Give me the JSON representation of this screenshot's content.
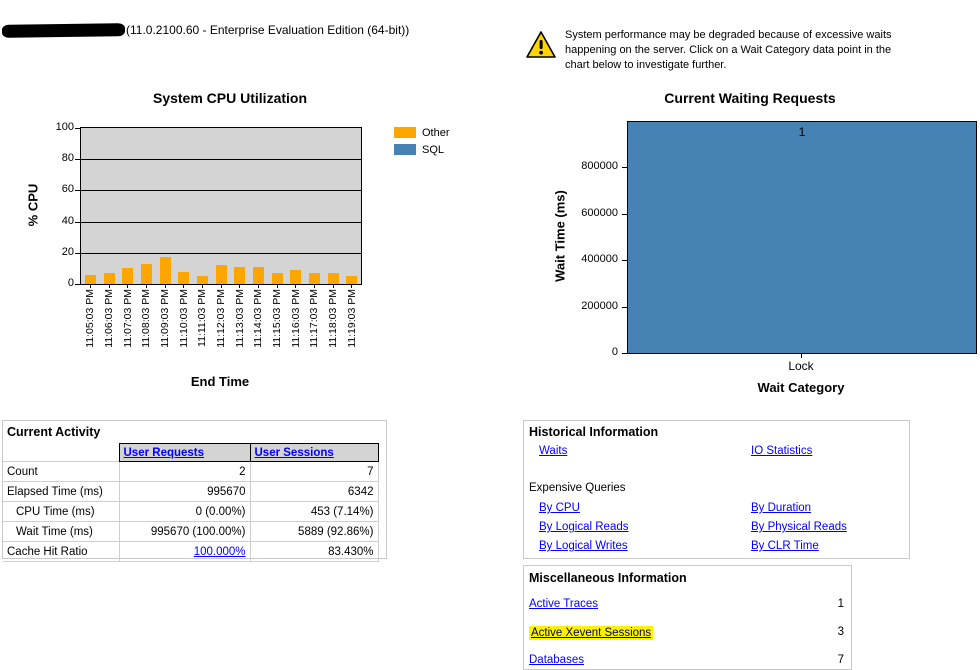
{
  "header": {
    "server_title": "(11.0.2100.60 - Enterprise Evaluation Edition (64-bit))"
  },
  "warning": {
    "text": "System performance may be degraded because of excessive waits happening on the server.  Click on a Wait Category data point in the chart below to investigate further."
  },
  "chart_data": [
    {
      "type": "bar",
      "title": "System CPU Utilization",
      "xlabel": "End Time",
      "ylabel": "% CPU",
      "ylim": [
        0,
        100
      ],
      "yticks": [
        0,
        20,
        40,
        60,
        80,
        100
      ],
      "grid": true,
      "plot_bg": "#D4D4D4",
      "legend_position": "right",
      "categories": [
        "11:05:03 PM",
        "11:06:03 PM",
        "11:07:03 PM",
        "11:08:03 PM",
        "11:09:03 PM",
        "11:10:03 PM",
        "11:11:03 PM",
        "11:12:03 PM",
        "11:13:03 PM",
        "11:14:03 PM",
        "11:15:03 PM",
        "11:16:03 PM",
        "11:17:03 PM",
        "11:18:03 PM",
        "11:19:03 PM"
      ],
      "series": [
        {
          "name": "Other",
          "color": "#FFA500",
          "values": [
            6,
            7,
            10,
            13,
            17,
            8,
            5,
            12,
            11,
            11,
            7,
            9,
            7,
            7,
            5
          ]
        },
        {
          "name": "SQL",
          "color": "#4682B4",
          "values": [
            0,
            0,
            0,
            0,
            0,
            0,
            0,
            0,
            0,
            0,
            0,
            0,
            0,
            0,
            0
          ]
        }
      ]
    },
    {
      "type": "bar",
      "title": "Current Waiting Requests",
      "xlabel": "Wait Category",
      "ylabel": "Wait Time (ms)",
      "ylim": [
        0,
        995670
      ],
      "yticks": [
        0,
        200000,
        400000,
        600000,
        800000
      ],
      "categories": [
        "Lock"
      ],
      "values": [
        995670
      ],
      "bar_count_labels": [
        "1"
      ],
      "bar_color": "#4682B4"
    }
  ],
  "current_activity": {
    "title": "Current Activity",
    "columns": [
      "User Requests",
      "User Sessions"
    ],
    "rows": [
      {
        "label": "Count",
        "values": [
          "2",
          "7"
        ],
        "indent": false,
        "value_links": [
          false,
          false
        ]
      },
      {
        "label": "Elapsed Time (ms)",
        "values": [
          "995670",
          "6342"
        ],
        "indent": false,
        "value_links": [
          false,
          false
        ]
      },
      {
        "label": "CPU Time (ms)",
        "values": [
          "0 (0.00%)",
          "453 (7.14%)"
        ],
        "indent": true,
        "value_links": [
          false,
          false
        ]
      },
      {
        "label": "Wait Time (ms)",
        "values": [
          "995670 (100.00%)",
          "5889 (92.86%)"
        ],
        "indent": true,
        "value_links": [
          false,
          false
        ]
      },
      {
        "label": "Cache Hit Ratio",
        "values": [
          "100.000%",
          "83.430%"
        ],
        "indent": false,
        "value_links": [
          true,
          false
        ]
      }
    ]
  },
  "historical": {
    "title": "Historical Information",
    "top_links": [
      "Waits",
      "IO Statistics"
    ],
    "subheading": "Expensive Queries",
    "query_links": [
      [
        "By CPU",
        "By Duration"
      ],
      [
        "By Logical Reads",
        "By Physical Reads"
      ],
      [
        "By Logical Writes",
        "By CLR Time"
      ]
    ]
  },
  "misc": {
    "title": "Miscellaneous Information",
    "items": [
      {
        "label": "Active Traces",
        "value": "1",
        "highlight": false
      },
      {
        "label": "Active Xevent Sessions",
        "value": "3",
        "highlight": true
      },
      {
        "label": "Databases",
        "value": "7",
        "highlight": false
      }
    ]
  },
  "colors": {
    "other_series": "#FFA500",
    "sql_series": "#4682B4",
    "plot_background": "#D4D4D4",
    "link": "#0000FF",
    "highlight": "#FFF200",
    "table_header_bg": "#D4D4D4"
  }
}
